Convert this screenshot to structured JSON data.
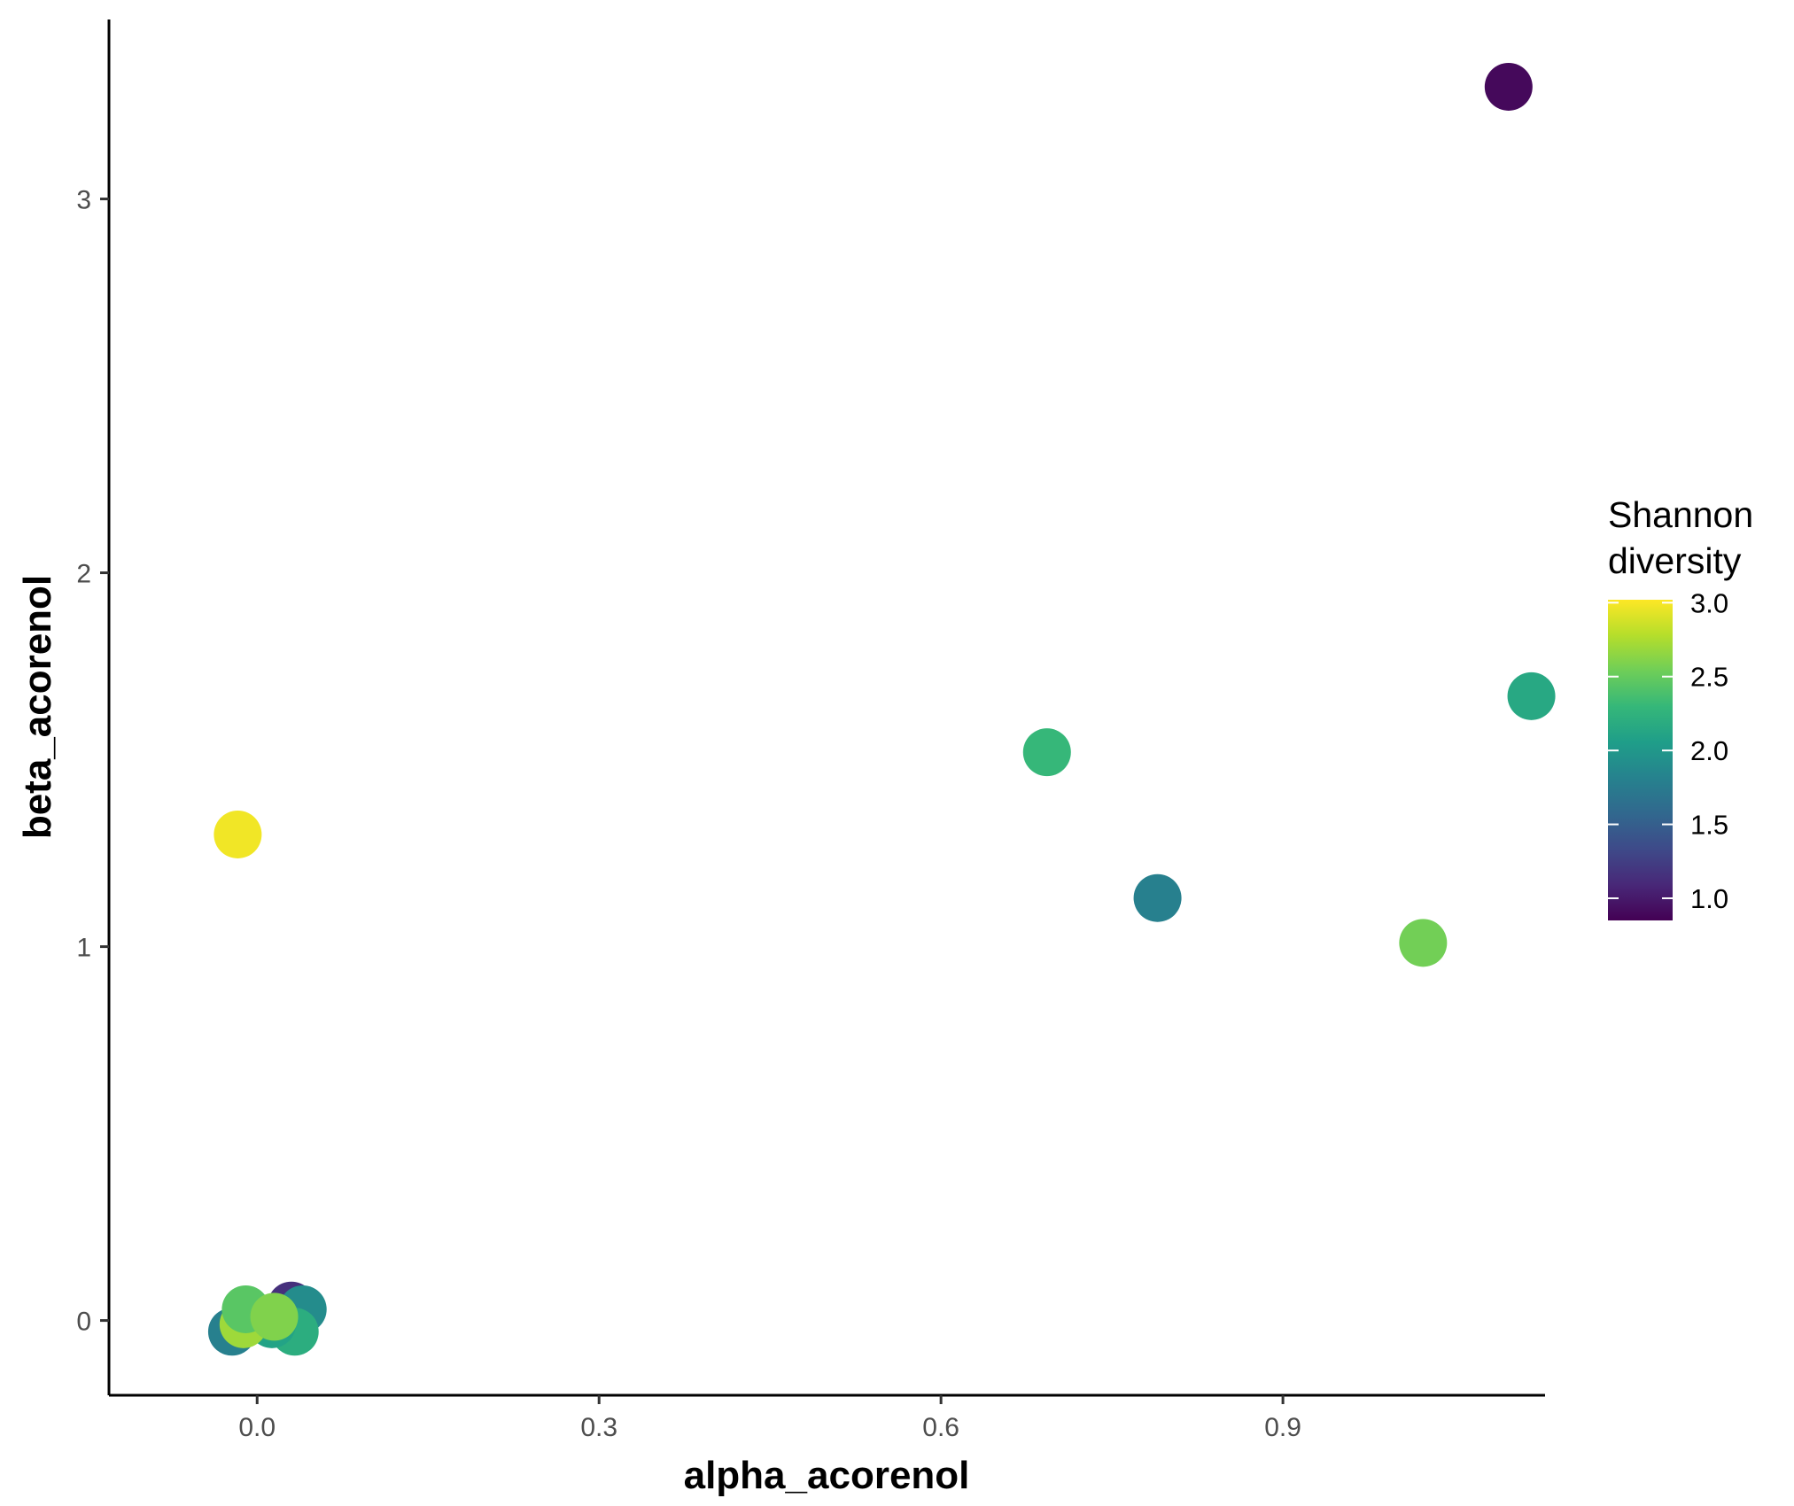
{
  "chart_data": {
    "type": "scatter",
    "xlabel": "alpha_acorenol",
    "ylabel": "beta_acorenol",
    "xlim": [
      -0.13,
      1.13
    ],
    "ylim": [
      -0.2,
      3.48
    ],
    "x_ticks": [
      0.0,
      0.3,
      0.6,
      0.9
    ],
    "x_tick_labels": [
      "0.0",
      "0.3",
      "0.6",
      "0.9"
    ],
    "y_ticks": [
      0,
      1,
      2,
      3
    ],
    "y_tick_labels": [
      "0",
      "1",
      "2",
      "3"
    ],
    "grid": false,
    "color_scale": {
      "title_lines": [
        "Shannon",
        "diversity"
      ],
      "palette": "viridis",
      "range": [
        0.85,
        3.02
      ],
      "ticks": [
        1.0,
        1.5,
        2.0,
        2.5,
        3.0
      ],
      "tick_labels": [
        "1.0",
        "1.5",
        "2.0",
        "2.5",
        "3.0"
      ],
      "stops": [
        "#440154",
        "#482878",
        "#3e4a89",
        "#31688e",
        "#26828e",
        "#1f9e89",
        "#35b779",
        "#6ece58",
        "#b5de2b",
        "#fde725"
      ],
      "legend_position": "right"
    },
    "points": [
      {
        "x": 1.098,
        "y": 3.3,
        "shannon": 0.9
      },
      {
        "x": 1.118,
        "y": 1.67,
        "shannon": 2.15
      },
      {
        "x": 0.693,
        "y": 1.52,
        "shannon": 2.3
      },
      {
        "x": 0.79,
        "y": 1.13,
        "shannon": 1.8
      },
      {
        "x": 1.023,
        "y": 1.01,
        "shannon": 2.55
      },
      {
        "x": -0.017,
        "y": 1.3,
        "shannon": 2.98
      },
      {
        "x": 0.03,
        "y": 0.04,
        "shannon": 1.15
      },
      {
        "x": 0.04,
        "y": 0.03,
        "shannon": 1.9
      },
      {
        "x": 0.033,
        "y": -0.03,
        "shannon": 2.2
      },
      {
        "x": 0.013,
        "y": -0.01,
        "shannon": 2.1
      },
      {
        "x": -0.022,
        "y": -0.03,
        "shannon": 1.8
      },
      {
        "x": -0.012,
        "y": -0.01,
        "shannon": 2.7
      },
      {
        "x": -0.01,
        "y": 0.03,
        "shannon": 2.45
      },
      {
        "x": 0.015,
        "y": 0.01,
        "shannon": 2.6
      }
    ]
  }
}
